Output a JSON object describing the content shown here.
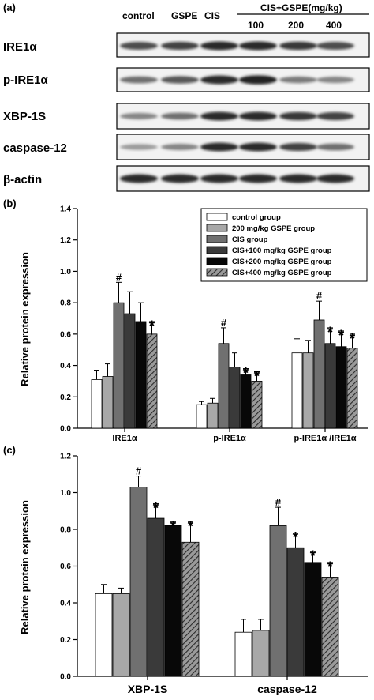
{
  "panels": {
    "a": {
      "letter": "(a)"
    },
    "b": {
      "letter": "(b)"
    },
    "c": {
      "letter": "(c)"
    }
  },
  "blot": {
    "lane_labels": [
      "control",
      "GSPE",
      "CIS"
    ],
    "group_header": "CIS+GSPE(mg/kg)",
    "dose_labels": [
      "100",
      "200",
      "400"
    ],
    "rows": [
      {
        "label": "IRE1α",
        "intensity": [
          0.7,
          0.75,
          0.85,
          0.85,
          0.8,
          0.7
        ]
      },
      {
        "label": "p-IRE1α",
        "intensity": [
          0.55,
          0.65,
          0.85,
          0.9,
          0.5,
          0.45
        ]
      },
      {
        "label": "XBP-1S",
        "intensity": [
          0.45,
          0.55,
          0.85,
          0.85,
          0.8,
          0.75
        ]
      },
      {
        "label": "caspase-12",
        "intensity": [
          0.35,
          0.45,
          0.85,
          0.85,
          0.75,
          0.55
        ]
      },
      {
        "label": "β-actin",
        "intensity": [
          0.85,
          0.85,
          0.85,
          0.85,
          0.85,
          0.85
        ]
      }
    ]
  },
  "legend": {
    "entries": [
      "control group",
      "200 mg/kg GSPE group",
      "CIS group",
      "CIS+100 mg/kg GSPE group",
      "CIS+200 mg/kg GSPE group",
      "CIS+400 mg/kg GSPE group"
    ],
    "colors": [
      "#ffffff",
      "#a8a8a8",
      "#707070",
      "#3a3a3a",
      "#080808",
      "#9a9a9a"
    ]
  },
  "chart_data": [
    {
      "type": "bar",
      "panel": "b",
      "ylabel": "Relative protein expression",
      "ylim": [
        0,
        1.4
      ],
      "yticks": [
        "0.0",
        "0.2",
        "0.4",
        "0.6",
        "0.8",
        "1.0",
        "1.2",
        "1.4"
      ],
      "categories": [
        "IRE1α",
        "p-IRE1α",
        "p-IRE1α /IRE1α"
      ],
      "series": [
        {
          "name": "control group",
          "values": [
            0.31,
            0.15,
            0.48
          ],
          "errors": [
            0.06,
            0.02,
            0.09
          ],
          "marks": [
            "",
            "",
            ""
          ]
        },
        {
          "name": "200 mg/kg GSPE group",
          "values": [
            0.33,
            0.16,
            0.48
          ],
          "errors": [
            0.08,
            0.03,
            0.08
          ],
          "marks": [
            "",
            "",
            ""
          ]
        },
        {
          "name": "CIS group",
          "values": [
            0.8,
            0.54,
            0.69
          ],
          "errors": [
            0.13,
            0.1,
            0.12
          ],
          "marks": [
            "#",
            "#",
            "#"
          ]
        },
        {
          "name": "CIS+100 mg/kg GSPE group",
          "values": [
            0.73,
            0.39,
            0.54
          ],
          "errors": [
            0.14,
            0.09,
            0.1
          ],
          "marks": [
            "",
            "",
            "*"
          ]
        },
        {
          "name": "CIS+200 mg/kg GSPE group",
          "values": [
            0.68,
            0.34,
            0.52
          ],
          "errors": [
            0.12,
            0.04,
            0.1
          ],
          "marks": [
            "",
            "*",
            "*"
          ]
        },
        {
          "name": "CIS+400 mg/kg GSPE group",
          "values": [
            0.6,
            0.3,
            0.51
          ],
          "errors": [
            0.08,
            0.06,
            0.09
          ],
          "marks": [
            "*",
            "*",
            "*"
          ]
        }
      ]
    },
    {
      "type": "bar",
      "panel": "c",
      "ylabel": "Relative protein expression",
      "ylim": [
        0,
        1.2
      ],
      "yticks": [
        "0.0",
        "0.2",
        "0.4",
        "0.6",
        "0.8",
        "1.0",
        "1.2"
      ],
      "categories": [
        "XBP-1S",
        "caspase-12"
      ],
      "series": [
        {
          "name": "control group",
          "values": [
            0.45,
            0.24
          ],
          "errors": [
            0.05,
            0.07
          ],
          "marks": [
            "",
            ""
          ]
        },
        {
          "name": "200 mg/kg GSPE group",
          "values": [
            0.45,
            0.25
          ],
          "errors": [
            0.03,
            0.06
          ],
          "marks": [
            "",
            ""
          ]
        },
        {
          "name": "CIS group",
          "values": [
            1.03,
            0.82
          ],
          "errors": [
            0.06,
            0.1
          ],
          "marks": [
            "#",
            "#"
          ]
        },
        {
          "name": "CIS+100 mg/kg GSPE group",
          "values": [
            0.86,
            0.7
          ],
          "errors": [
            0.08,
            0.08
          ],
          "marks": [
            "*",
            "*"
          ]
        },
        {
          "name": "CIS+200 mg/kg GSPE group",
          "values": [
            0.82,
            0.62
          ],
          "errors": [
            0.02,
            0.06
          ],
          "marks": [
            "*",
            "*"
          ]
        },
        {
          "name": "CIS+400 mg/kg GSPE group",
          "values": [
            0.73,
            0.54
          ],
          "errors": [
            0.11,
            0.08
          ],
          "marks": [
            "*",
            "*"
          ]
        }
      ]
    }
  ]
}
